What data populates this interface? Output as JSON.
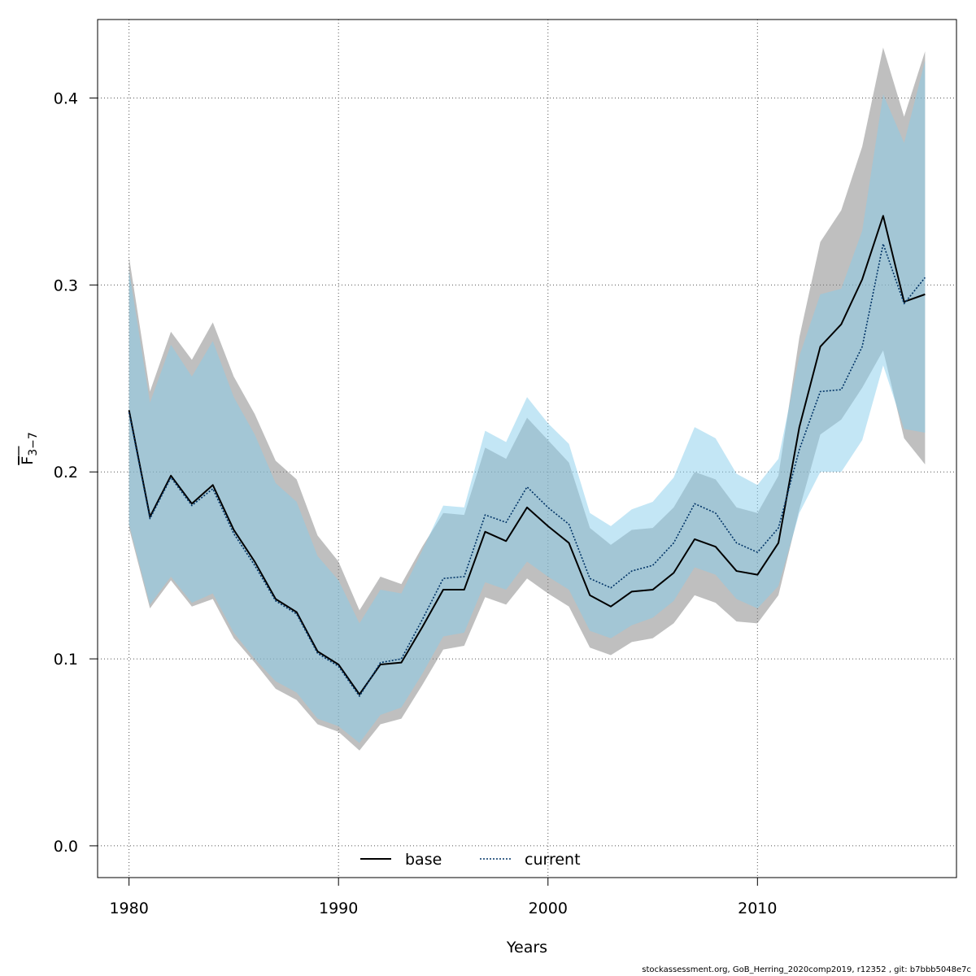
{
  "chart_data": {
    "type": "line",
    "xlabel": "Years",
    "ylabel": {
      "base": "F",
      "sub": "3−7"
    },
    "xlim": [
      1978.5,
      2019.5
    ],
    "ylim": [
      -0.017,
      0.442
    ],
    "xticks": [
      1980,
      1990,
      2000,
      2010
    ],
    "yticks": [
      0.0,
      0.1,
      0.2,
      0.3,
      0.4
    ],
    "ytick_labels": [
      "0.0",
      "0.1",
      "0.2",
      "0.3",
      "0.4"
    ],
    "grid": true,
    "legend_position": "bottom-center",
    "x": [
      1980,
      1981,
      1982,
      1983,
      1984,
      1985,
      1986,
      1987,
      1988,
      1989,
      1990,
      1991,
      1992,
      1993,
      1994,
      1995,
      1996,
      1997,
      1998,
      1999,
      2000,
      2001,
      2002,
      2003,
      2004,
      2005,
      2006,
      2007,
      2008,
      2009,
      2010,
      2011,
      2012,
      2013,
      2014,
      2015,
      2016,
      2017,
      2018
    ],
    "series": [
      {
        "name": "base",
        "style": "solid",
        "color": "#000000",
        "band_color": "#808080",
        "values": [
          0.233,
          0.176,
          0.198,
          0.183,
          0.193,
          0.169,
          0.152,
          0.132,
          0.125,
          0.104,
          0.097,
          0.081,
          0.097,
          0.098,
          0.117,
          0.137,
          0.137,
          0.168,
          0.163,
          0.181,
          0.171,
          0.162,
          0.134,
          0.128,
          0.136,
          0.137,
          0.146,
          0.164,
          0.16,
          0.147,
          0.145,
          0.162,
          0.224,
          0.267,
          0.279,
          0.303,
          0.337,
          0.291,
          0.295
        ],
        "lower": [
          0.17,
          0.127,
          0.142,
          0.128,
          0.132,
          0.111,
          0.098,
          0.084,
          0.078,
          0.065,
          0.061,
          0.051,
          0.065,
          0.068,
          0.086,
          0.105,
          0.107,
          0.133,
          0.129,
          0.143,
          0.135,
          0.128,
          0.106,
          0.102,
          0.109,
          0.111,
          0.119,
          0.134,
          0.13,
          0.12,
          0.119,
          0.134,
          0.18,
          0.22,
          0.228,
          0.245,
          0.265,
          0.218,
          0.204
        ],
        "upper": [
          0.315,
          0.243,
          0.275,
          0.26,
          0.28,
          0.251,
          0.231,
          0.206,
          0.196,
          0.166,
          0.152,
          0.126,
          0.144,
          0.14,
          0.16,
          0.178,
          0.177,
          0.213,
          0.207,
          0.229,
          0.217,
          0.205,
          0.17,
          0.161,
          0.169,
          0.17,
          0.181,
          0.2,
          0.196,
          0.181,
          0.178,
          0.198,
          0.272,
          0.323,
          0.34,
          0.374,
          0.427,
          0.39,
          0.425
        ]
      },
      {
        "name": "current",
        "style": "dotted",
        "color": "#003366",
        "band_color": "#87CEEB",
        "values": [
          0.232,
          0.175,
          0.197,
          0.182,
          0.191,
          0.167,
          0.15,
          0.131,
          0.124,
          0.103,
          0.096,
          0.08,
          0.098,
          0.1,
          0.121,
          0.143,
          0.144,
          0.177,
          0.173,
          0.192,
          0.181,
          0.172,
          0.143,
          0.138,
          0.147,
          0.15,
          0.162,
          0.183,
          0.178,
          0.162,
          0.157,
          0.17,
          0.212,
          0.243,
          0.244,
          0.267,
          0.322,
          0.29,
          0.304
        ],
        "lower": [
          0.172,
          0.129,
          0.144,
          0.13,
          0.135,
          0.114,
          0.1,
          0.088,
          0.082,
          0.068,
          0.064,
          0.055,
          0.07,
          0.074,
          0.092,
          0.112,
          0.114,
          0.141,
          0.137,
          0.152,
          0.144,
          0.137,
          0.115,
          0.111,
          0.118,
          0.122,
          0.131,
          0.149,
          0.145,
          0.132,
          0.127,
          0.139,
          0.178,
          0.2,
          0.2,
          0.217,
          0.257,
          0.223,
          0.221
        ],
        "upper": [
          0.308,
          0.237,
          0.268,
          0.251,
          0.27,
          0.24,
          0.22,
          0.194,
          0.184,
          0.155,
          0.142,
          0.119,
          0.137,
          0.135,
          0.158,
          0.182,
          0.181,
          0.222,
          0.216,
          0.24,
          0.226,
          0.215,
          0.178,
          0.171,
          0.18,
          0.184,
          0.197,
          0.224,
          0.218,
          0.199,
          0.193,
          0.207,
          0.262,
          0.295,
          0.298,
          0.329,
          0.402,
          0.376,
          0.42
        ]
      }
    ]
  },
  "footer": "stockassessment.org, GoB_Herring_2020comp2019, r12352 , git: b7bbb5048e7c"
}
